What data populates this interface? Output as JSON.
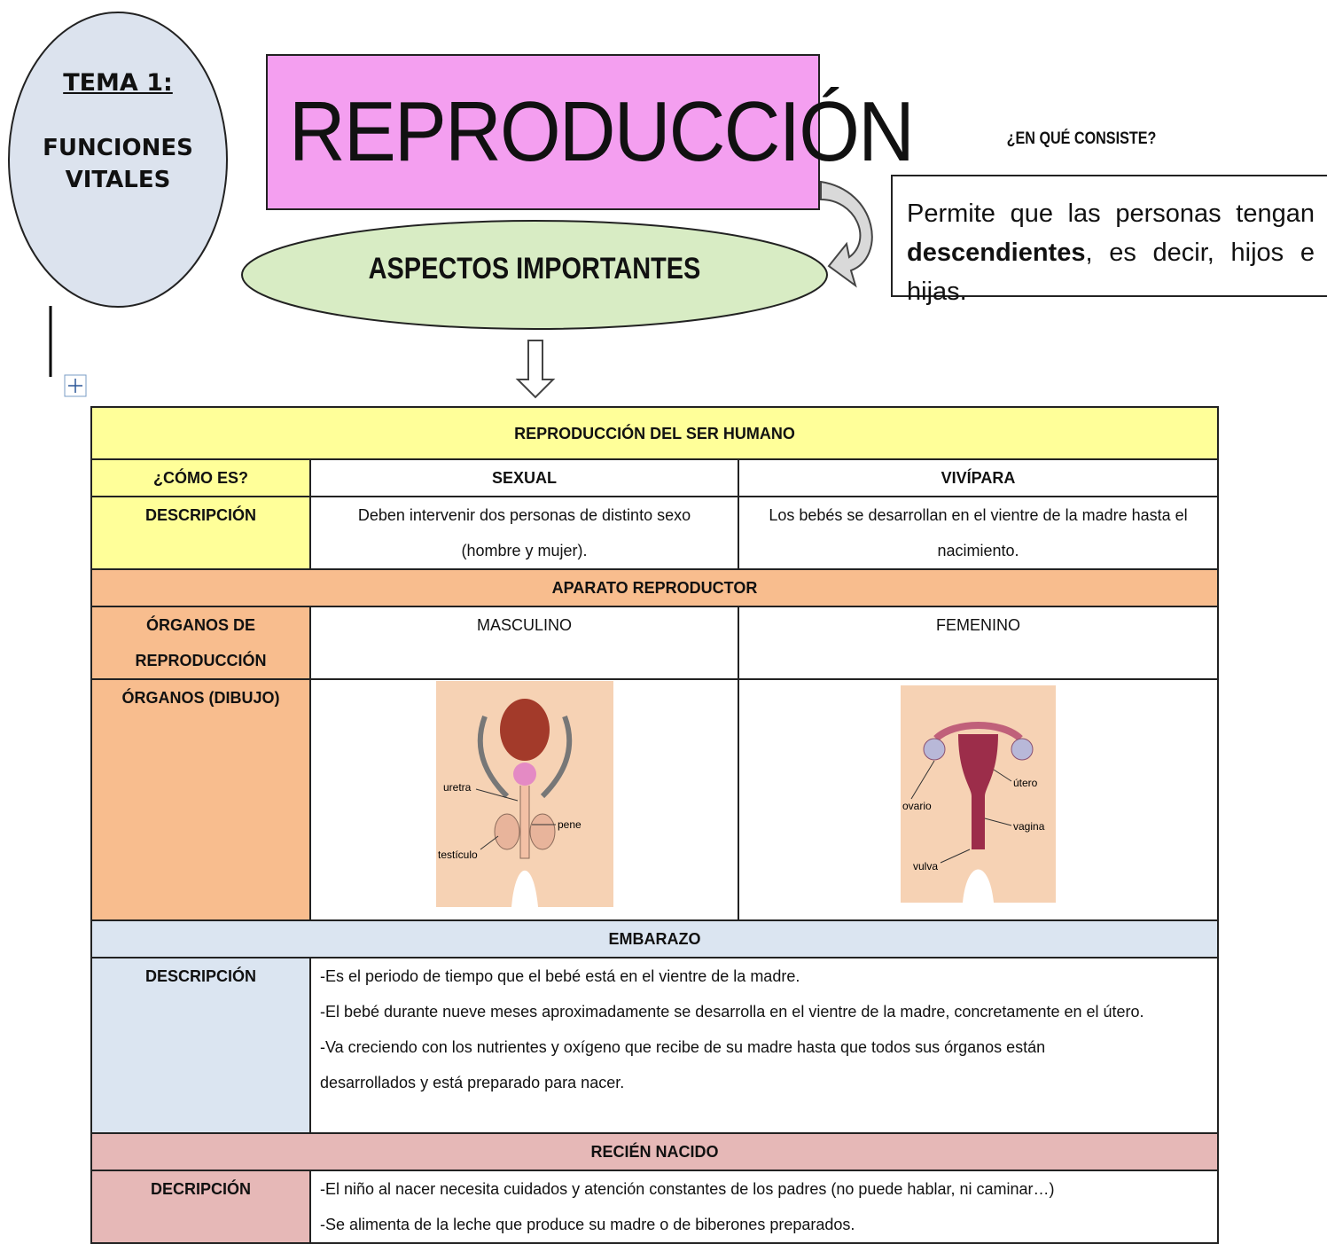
{
  "header": {
    "tema": "TEMA 1:",
    "subject": [
      "FUNCIONES",
      "VITALES"
    ],
    "title": "REPRODUCCIÓN",
    "aspects": "ASPECTOS IMPORTANTES",
    "question": "¿EN QUÉ CONSISTE?",
    "answer": {
      "before": "Permite que las personas tengan",
      "bold": "descendientes",
      "after": ", es decir, hijos e hijas."
    }
  },
  "table": {
    "title": "REPRODUCCIÓN DEL SER HUMANO",
    "how": {
      "label": "¿CÓMO ES?",
      "values": [
        "SEXUAL",
        "VIVÍPARA"
      ]
    },
    "description": {
      "label": "DESCRIPCIÓN",
      "values": [
        "Deben intervenir dos personas de distinto sexo (hombre y mujer).",
        "Los bebés se desarrollan en el vientre de la madre hasta el nacimiento."
      ]
    },
    "apparatus": {
      "title": "APARATO REPRODUCTOR",
      "organs": {
        "label": "ÓRGANOS DE REPRODUCCIÓN",
        "values": [
          "MASCULINO",
          "FEMENINO"
        ]
      },
      "drawing": {
        "label": "ÓRGANOS (DIBUJO)",
        "male_labels": [
          "uretra",
          "pene",
          "testículo"
        ],
        "female_labels": [
          "ovario",
          "útero",
          "vagina",
          "vulva"
        ]
      }
    },
    "pregnancy": {
      "title": "EMBARAZO",
      "label": "DESCRIPCIÓN",
      "lines": [
        "-Es el periodo de tiempo que el bebé está en el vientre de la madre.",
        "-El bebé durante nueve meses aproximadamente se desarrolla en el vientre de la madre, concretamente en el útero.",
        "-Va creciendo con los nutrientes y oxígeno que recibe de su madre hasta que todos sus órganos están desarrollados y está preparado para nacer."
      ]
    },
    "newborn": {
      "title": "RECIÉN NACIDO",
      "label": "DECRIPCIÓN",
      "lines": [
        "-El niño al nacer necesita cuidados y atención constantes de los padres (no puede hablar, ni caminar…)",
        "-Se alimenta de la leche que produce su madre o de biberones preparados."
      ]
    }
  }
}
